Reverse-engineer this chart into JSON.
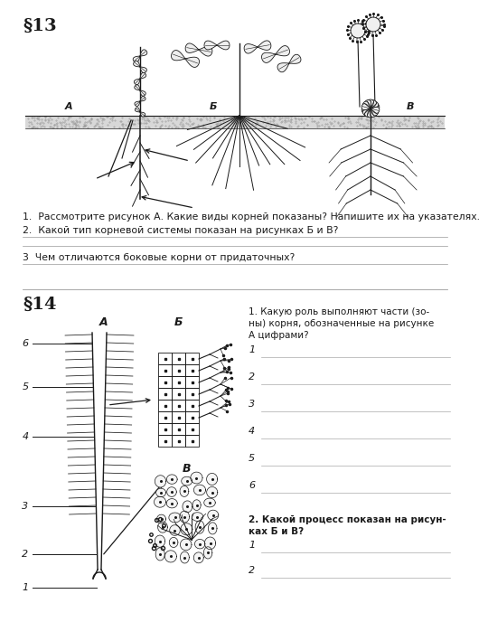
{
  "bg_color": "#ffffff",
  "lc": "#1a1a1a",
  "section1": {
    "title": "§13",
    "q1": "1.  Рассмотрите рисунок А. Какие виды корней показаны? Напишите их на указателях.",
    "q2": "2.  Какой тип корневой системы показан на рисунках Б и В?",
    "q3": "3  Чем отличаются боковые корни от придаточных?"
  },
  "section2": {
    "title": "§14",
    "q1_line1": "1. Какую роль выполняют части (зо-",
    "q1_line2": "ны) корня, обозначенные на рисунке",
    "q1_line3": "А цифрами?",
    "labels": [
      "1",
      "2",
      "3",
      "4",
      "5",
      "6"
    ],
    "fig_a_label": "А",
    "fig_b_label": "Б",
    "fig_v_label": "В",
    "q2_line1": "2. Какой процесс показан на рисун-",
    "q2_line2": "ках Б и В?",
    "q2_labels": [
      "1",
      "2"
    ]
  }
}
